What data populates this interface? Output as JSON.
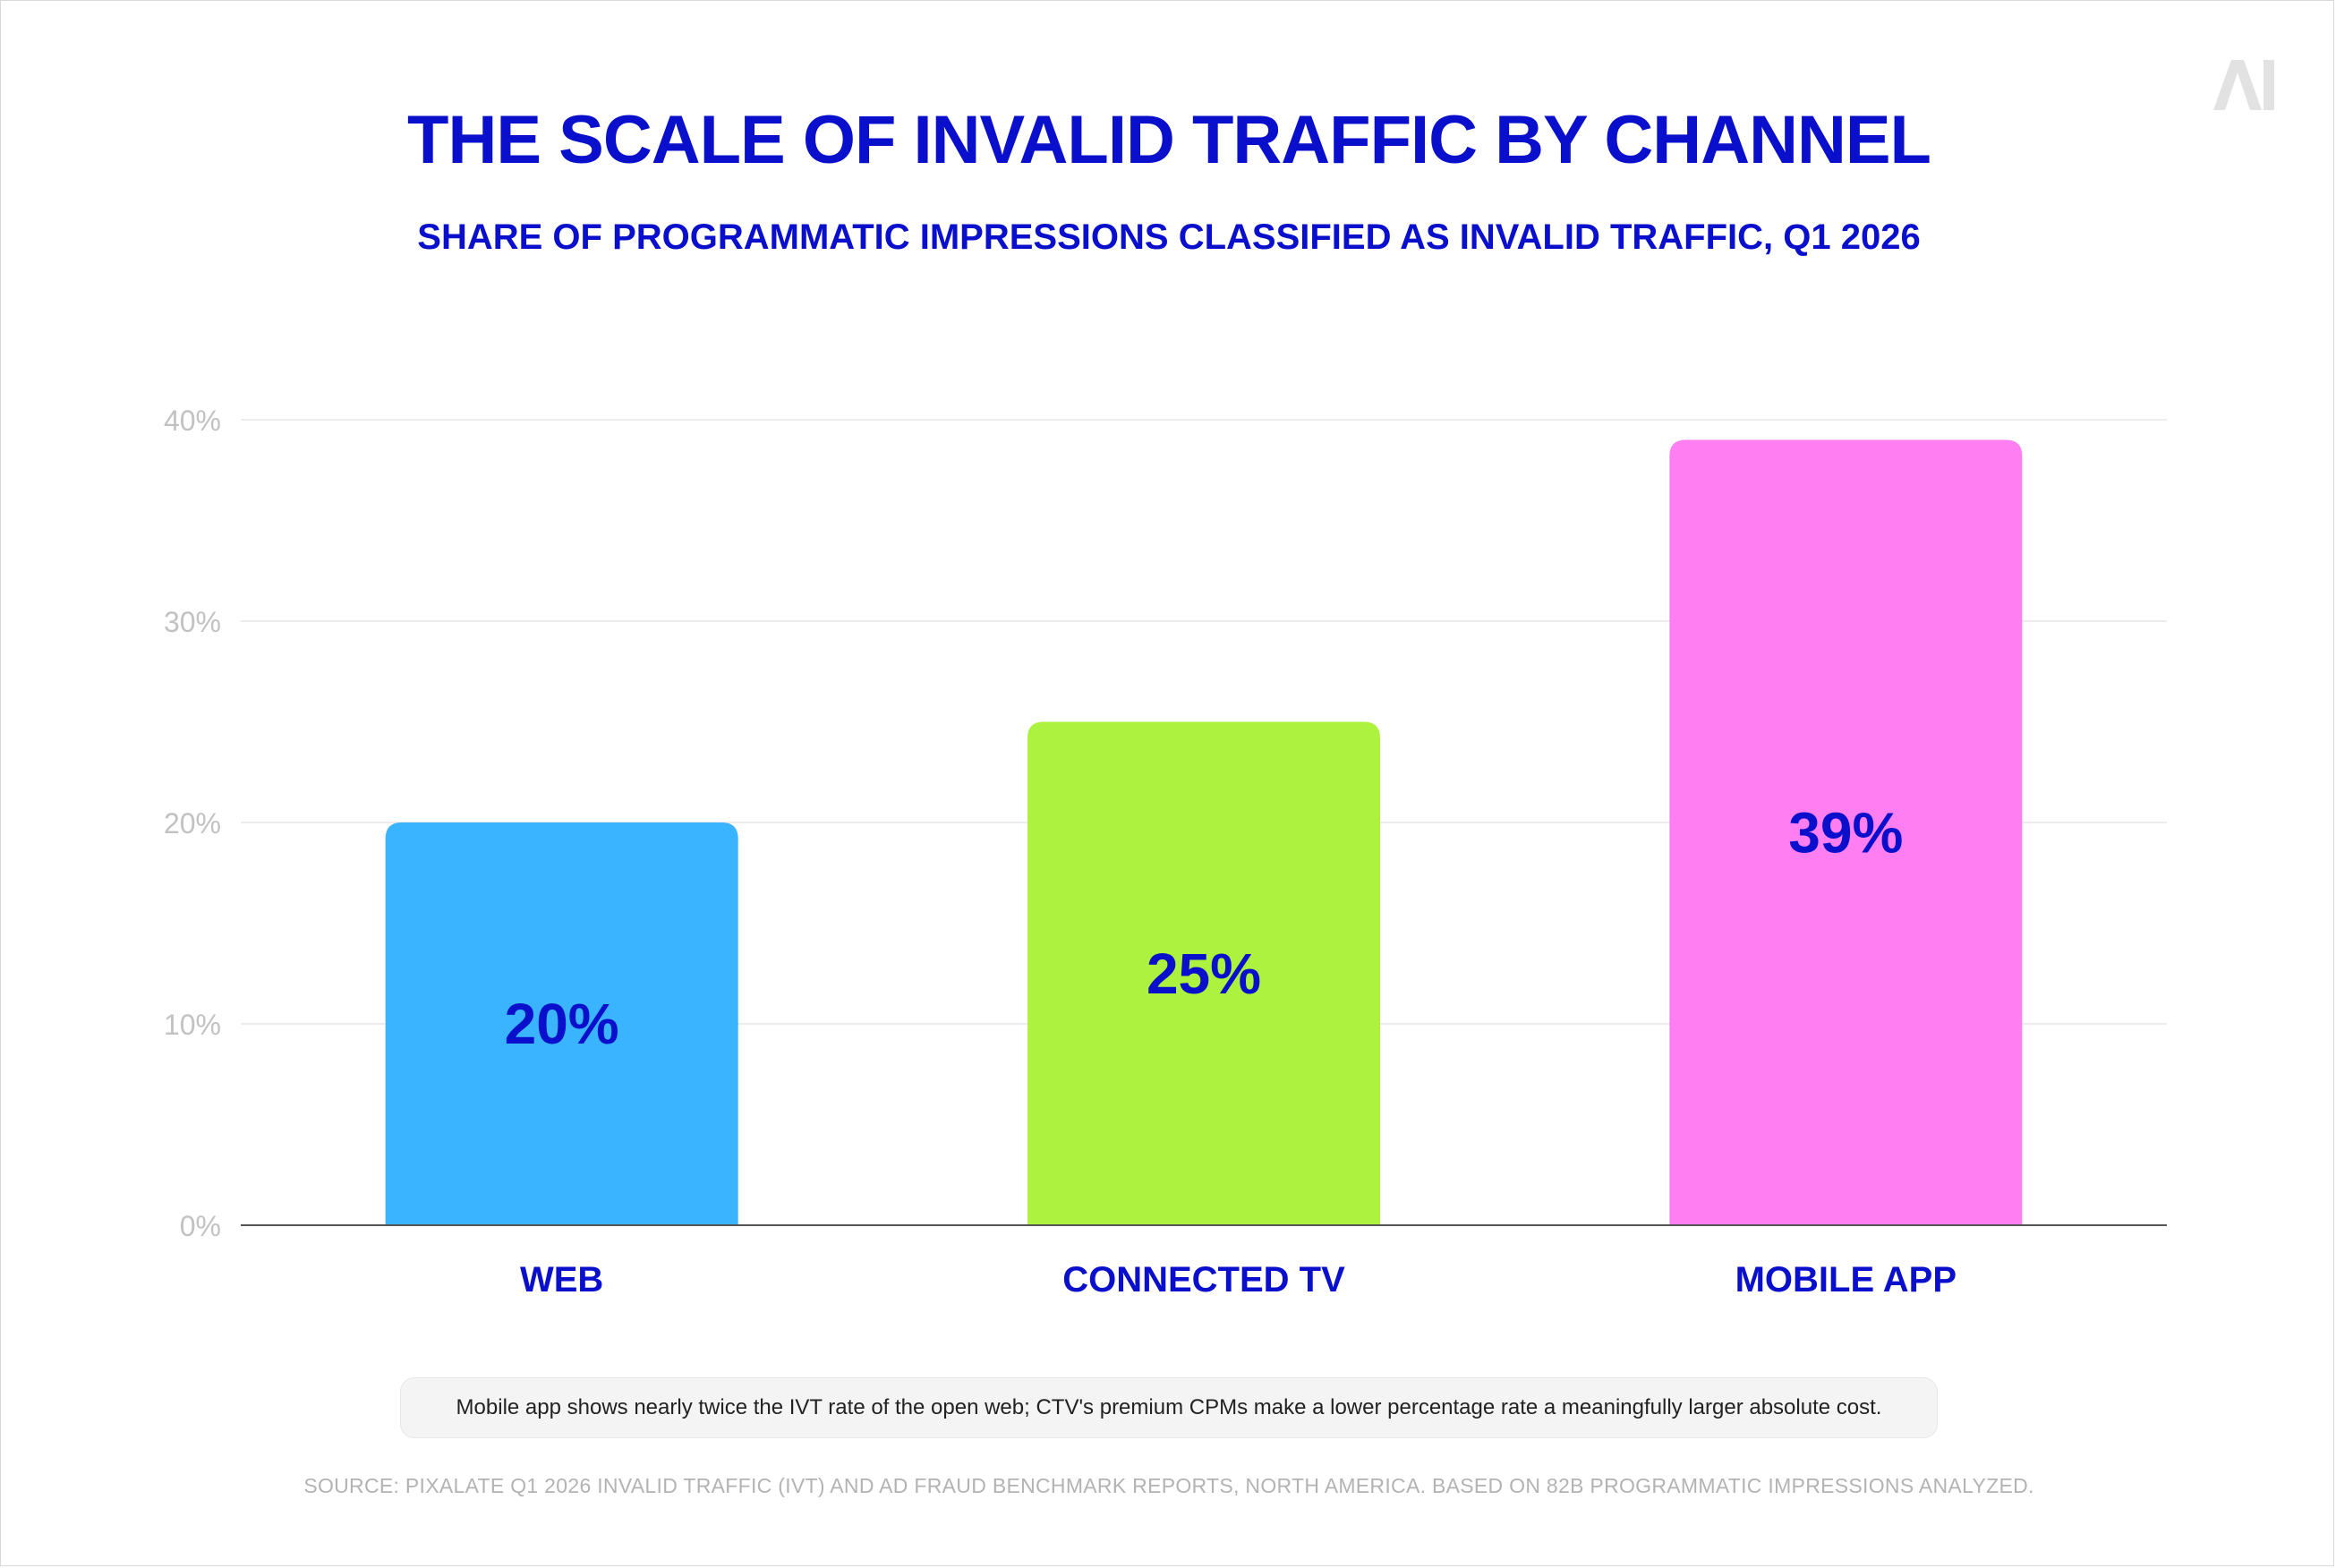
{
  "title": "THE SCALE OF INVALID TRAFFIC BY CHANNEL",
  "subtitle": "SHARE OF PROGRAMMATIC IMPRESSIONS CLASSIFIED AS INVALID TRAFFIC, Q1 2026",
  "logo_text": "AI",
  "note": "Mobile app shows nearly twice the IVT rate of the open web; CTV's premium CPMs make a lower percentage rate a meaningfully larger absolute cost.",
  "source": "SOURCE: PIXALATE Q1 2026 INVALID TRAFFIC (IVT) AND AD FRAUD BENCHMARK REPORTS, NORTH AMERICA. BASED ON 82B PROGRAMMATIC IMPRESSIONS ANALYZED.",
  "colors": {
    "title": "#0a0fcc",
    "grid": "#ececec",
    "axis": "#555555",
    "tick_label": "#c2c2c2",
    "logo": "#e2e2e2"
  },
  "chart_data": {
    "type": "bar",
    "title": "THE SCALE OF INVALID TRAFFIC BY CHANNEL",
    "subtitle": "SHARE OF PROGRAMMATIC IMPRESSIONS CLASSIFIED AS INVALID TRAFFIC, Q1 2026",
    "categories": [
      "WEB",
      "CONNECTED TV",
      "MOBILE APP"
    ],
    "values": [
      20,
      25,
      39
    ],
    "data_labels": [
      "20%",
      "25%",
      "39%"
    ],
    "bar_colors": [
      "#3ab4ff",
      "#adf23e",
      "#ff7ef2"
    ],
    "ylim": [
      0,
      40
    ],
    "yticks": [
      0,
      10,
      20,
      30,
      40
    ],
    "ytick_labels": [
      "0%",
      "10%",
      "20%",
      "30%",
      "40%"
    ],
    "xlabel": "",
    "ylabel": "",
    "grid": true,
    "legend": "none"
  }
}
